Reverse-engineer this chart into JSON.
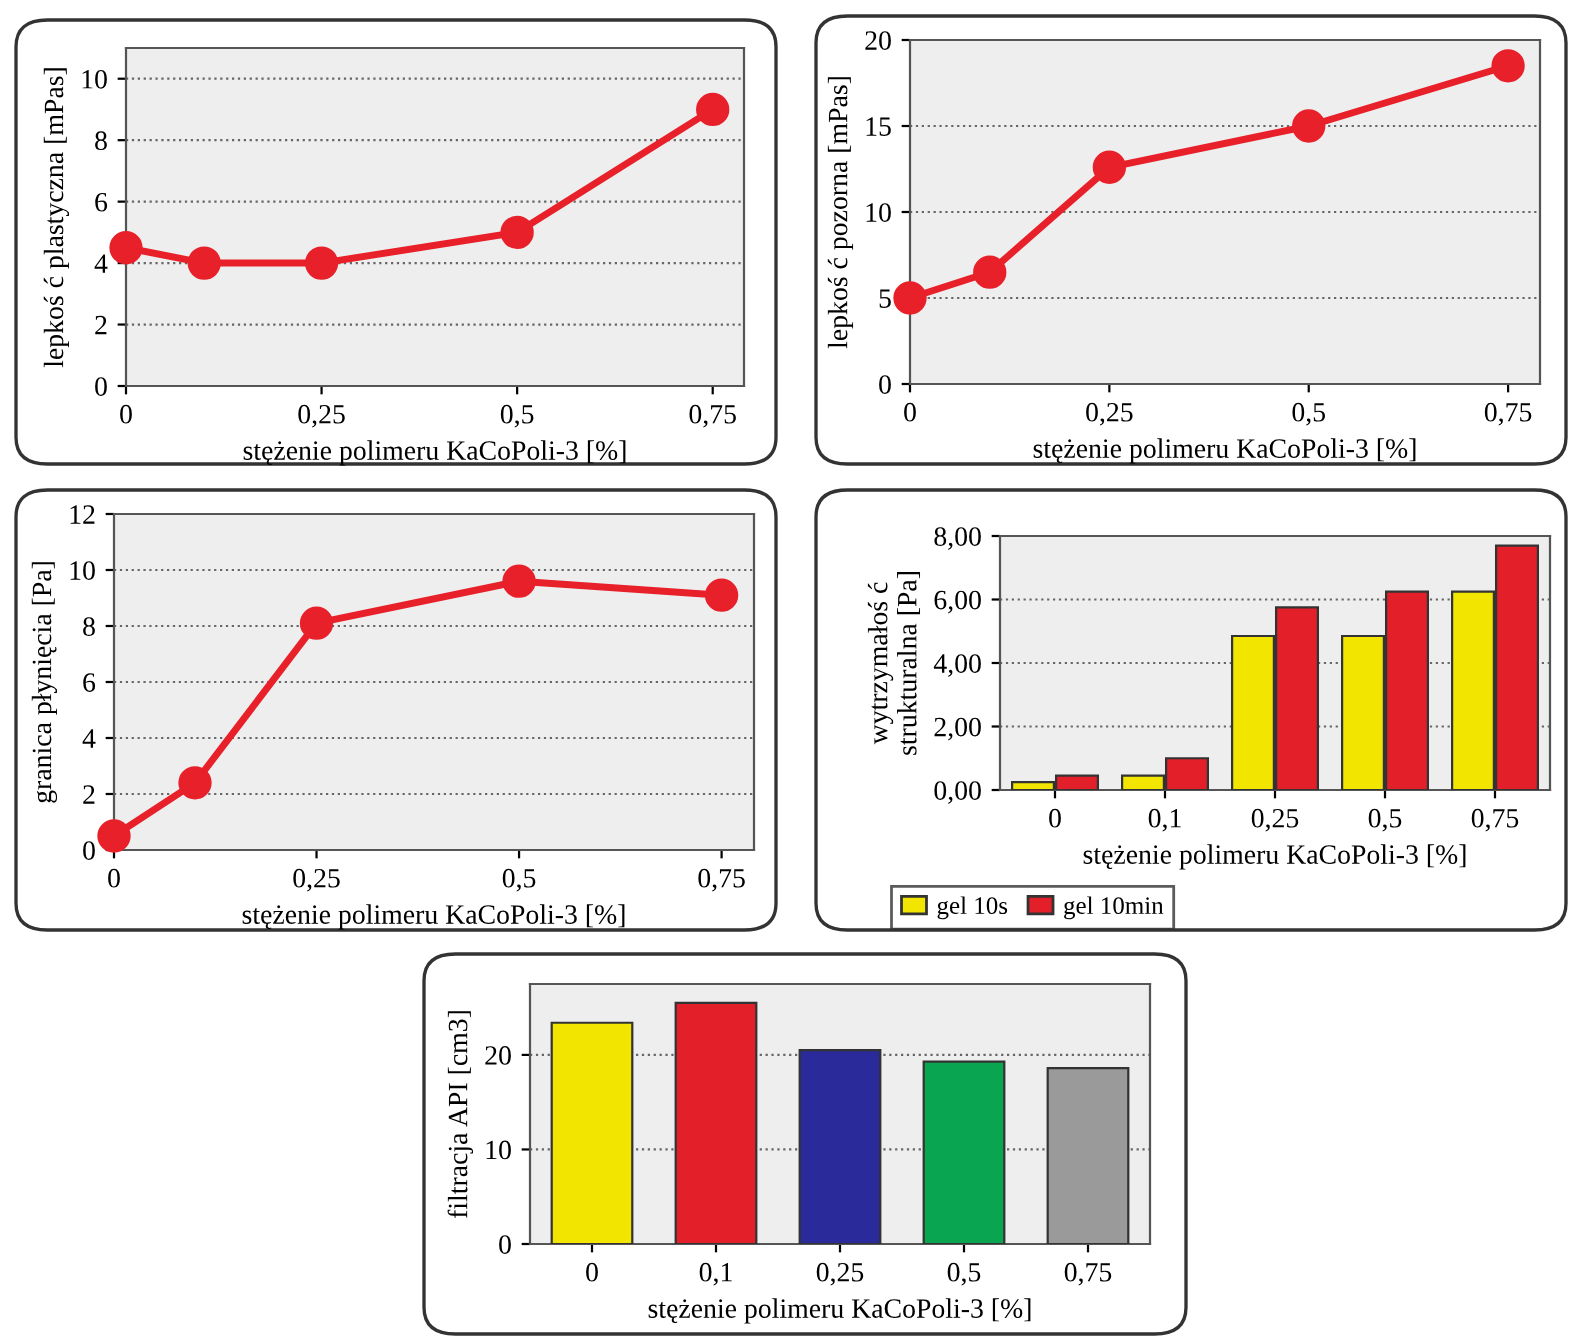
{
  "chart_data": [
    {
      "type": "line",
      "xlabel": "stężenie polimeru KaCoPoli-3 [%]",
      "ylabel": "lepkoś ć plastyczna [mPas]",
      "x": [
        0,
        0.1,
        0.25,
        0.5,
        0.75
      ],
      "values": [
        4.5,
        4.0,
        4.0,
        5.0,
        9.0
      ],
      "color": "#e8202a",
      "marker": "circle",
      "xlim": [
        0,
        0.79
      ],
      "xticks": [
        0,
        {
          "value": 0.25,
          "label": "0,25"
        },
        {
          "value": 0.5,
          "label": "0,5"
        },
        {
          "value": 0.75,
          "label": "0,75"
        }
      ],
      "ylim": [
        0,
        11
      ],
      "yticks": [
        0,
        2,
        4,
        6,
        8,
        10
      ],
      "grid": "y"
    },
    {
      "type": "line",
      "xlabel": "stężenie polimeru KaCoPoli-3 [%]",
      "ylabel": "lepkoś ć pozorna [mPas]",
      "x": [
        0,
        0.1,
        0.25,
        0.5,
        0.75
      ],
      "values": [
        5.0,
        6.5,
        12.6,
        15.0,
        18.5
      ],
      "color": "#e8202a",
      "marker": "circle",
      "xlim": [
        0,
        0.79
      ],
      "xticks": [
        0,
        {
          "value": 0.25,
          "label": "0,25"
        },
        {
          "value": 0.5,
          "label": "0,5"
        },
        {
          "value": 0.75,
          "label": "0,75"
        }
      ],
      "ylim": [
        0,
        20
      ],
      "yticks": [
        0,
        5,
        10,
        15,
        20
      ],
      "grid": "y"
    },
    {
      "type": "line",
      "xlabel": "stężenie polimeru KaCoPoli-3 [%]",
      "ylabel": "granica płynięcia [Pa]",
      "x": [
        0,
        0.1,
        0.25,
        0.5,
        0.75
      ],
      "values": [
        0.5,
        2.4,
        8.1,
        9.6,
        9.1
      ],
      "color": "#e8202a",
      "marker": "circle",
      "xlim": [
        0,
        0.79
      ],
      "xticks": [
        0,
        {
          "value": 0.25,
          "label": "0,25"
        },
        {
          "value": 0.5,
          "label": "0,5"
        },
        {
          "value": 0.75,
          "label": "0,75"
        }
      ],
      "ylim": [
        0,
        12
      ],
      "yticks": [
        0,
        2,
        4,
        6,
        8,
        10,
        12
      ],
      "grid": "y"
    },
    {
      "type": "bar",
      "xlabel": "stężenie polimeru KaCoPoli-3 [%]",
      "ylabel": "wytrzymałoś ć\nstrukturalna [Pa]",
      "categories": [
        "0",
        "0,1",
        "0,25",
        "0,5",
        "0,75"
      ],
      "series": [
        {
          "name": "gel 10s",
          "color": "#f2e600",
          "values": [
            0.25,
            0.45,
            4.85,
            4.85,
            6.25
          ]
        },
        {
          "name": "gel 10min",
          "color": "#e3202a",
          "values": [
            0.45,
            1.0,
            5.75,
            6.25,
            7.7
          ]
        }
      ],
      "ylim": [
        0,
        8
      ],
      "yticks": [
        {
          "value": 0,
          "label": "0,00"
        },
        {
          "value": 2,
          "label": "2,00"
        },
        {
          "value": 4,
          "label": "4,00"
        },
        {
          "value": 6,
          "label": "6,00"
        },
        {
          "value": 8,
          "label": "8,00"
        }
      ],
      "grid": "y",
      "legend": "bottom left"
    },
    {
      "type": "bar",
      "xlabel": "stężenie polimeru KaCoPoli-3 [%]",
      "ylabel": "filtracja API [cm3]",
      "categories": [
        "0",
        "0,1",
        "0,25",
        "0,5",
        "0,75"
      ],
      "values": [
        23.4,
        25.5,
        20.5,
        19.3,
        18.6
      ],
      "colors": [
        "#f2e600",
        "#e3202a",
        "#2a2a9a",
        "#0aa550",
        "#9a9a9a"
      ],
      "ylim": [
        0,
        27.5
      ],
      "yticks": [
        0,
        10,
        20
      ],
      "grid": "y"
    }
  ]
}
